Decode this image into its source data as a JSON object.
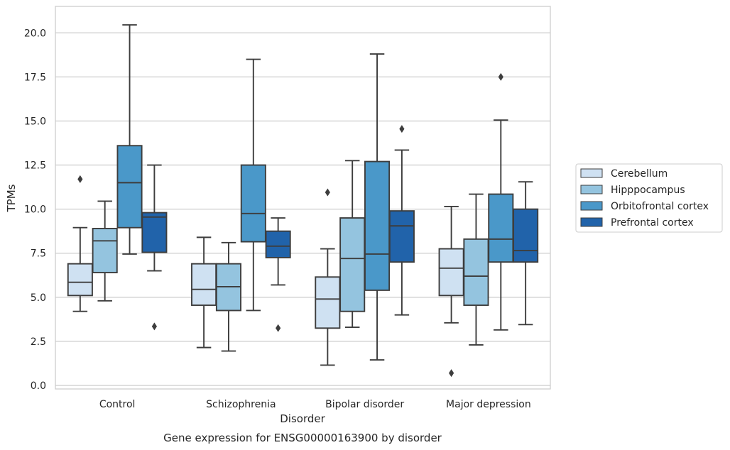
{
  "chart_data": {
    "type": "box",
    "xlabel": "Disorder",
    "ylabel": "TPMs",
    "caption": "Gene expression for ENSG00000163900 by disorder",
    "ylim": [
      -0.2,
      21.5
    ],
    "yticks": [
      "0.0",
      "2.5",
      "5.0",
      "7.5",
      "10.0",
      "12.5",
      "15.0",
      "17.5",
      "20.0"
    ],
    "grid": "horizontal",
    "legend_position": "right",
    "categories": [
      "Control",
      "Schizophrenia",
      "Bipolar disorder",
      "Major depression"
    ],
    "series": [
      {
        "name": "Cerebellum",
        "color": "#cfe1f2",
        "boxes": [
          {
            "whislo": 4.2,
            "q1": 5.1,
            "med": 5.85,
            "q3": 6.9,
            "whishi": 8.95,
            "fliers": [
              11.7
            ]
          },
          {
            "whislo": 2.15,
            "q1": 4.55,
            "med": 5.45,
            "q3": 6.9,
            "whishi": 8.4,
            "fliers": []
          },
          {
            "whislo": 1.15,
            "q1": 3.25,
            "med": 4.9,
            "q3": 6.15,
            "whishi": 7.75,
            "fliers": [
              10.95
            ]
          },
          {
            "whislo": 3.55,
            "q1": 5.1,
            "med": 6.65,
            "q3": 7.75,
            "whishi": 10.15,
            "fliers": [
              0.7
            ]
          }
        ]
      },
      {
        "name": "Hipppocampus",
        "color": "#94c4df",
        "boxes": [
          {
            "whislo": 4.8,
            "q1": 6.4,
            "med": 8.2,
            "q3": 8.9,
            "whishi": 10.45,
            "fliers": []
          },
          {
            "whislo": 1.95,
            "q1": 4.25,
            "med": 5.6,
            "q3": 6.9,
            "whishi": 8.1,
            "fliers": []
          },
          {
            "whislo": 3.3,
            "q1": 4.2,
            "med": 7.2,
            "q3": 9.5,
            "whishi": 12.75,
            "fliers": []
          },
          {
            "whislo": 2.3,
            "q1": 4.55,
            "med": 6.2,
            "q3": 8.3,
            "whishi": 10.85,
            "fliers": []
          }
        ]
      },
      {
        "name": "Orbitofrontal cortex",
        "color": "#4a98c9",
        "boxes": [
          {
            "whislo": 7.45,
            "q1": 8.95,
            "med": 11.5,
            "q3": 13.6,
            "whishi": 20.45,
            "fliers": []
          },
          {
            "whislo": 4.25,
            "q1": 8.15,
            "med": 9.75,
            "q3": 12.5,
            "whishi": 18.5,
            "fliers": []
          },
          {
            "whislo": 1.45,
            "q1": 5.4,
            "med": 7.45,
            "q3": 12.7,
            "whishi": 18.8,
            "fliers": []
          },
          {
            "whislo": 3.15,
            "q1": 7.0,
            "med": 8.3,
            "q3": 10.85,
            "whishi": 15.05,
            "fliers": [
              17.5
            ]
          }
        ]
      },
      {
        "name": "Prefrontal cortex",
        "color": "#2163aa",
        "boxes": [
          {
            "whislo": 6.5,
            "q1": 7.55,
            "med": 9.55,
            "q3": 9.8,
            "whishi": 12.5,
            "fliers": [
              3.35
            ]
          },
          {
            "whislo": 5.7,
            "q1": 7.25,
            "med": 7.9,
            "q3": 8.75,
            "whishi": 9.5,
            "fliers": [
              3.25
            ]
          },
          {
            "whislo": 4.0,
            "q1": 7.0,
            "med": 9.05,
            "q3": 9.9,
            "whishi": 13.35,
            "fliers": [
              14.55
            ]
          },
          {
            "whislo": 3.45,
            "q1": 7.0,
            "med": 7.65,
            "q3": 10.0,
            "whishi": 11.55,
            "fliers": []
          }
        ]
      }
    ]
  }
}
